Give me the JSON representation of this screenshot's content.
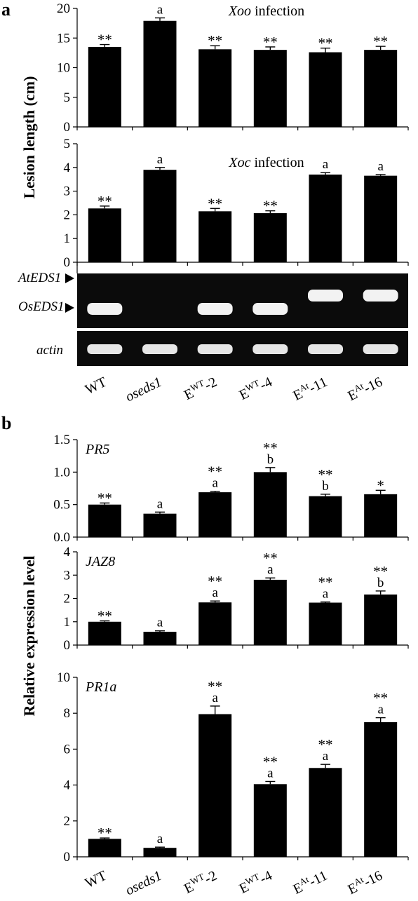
{
  "panel_labels": {
    "a": "a",
    "b": "b"
  },
  "categories": [
    {
      "main": "WT",
      "sup": "",
      "tail": "",
      "italic": false
    },
    {
      "main": "oseds1",
      "sup": "",
      "tail": "",
      "italic": true
    },
    {
      "main": "E",
      "sup": "WT",
      "tail": "-2",
      "italic": false
    },
    {
      "main": "E",
      "sup": "WT",
      "tail": "-4",
      "italic": false
    },
    {
      "main": "E",
      "sup": "At",
      "tail": "-11",
      "italic": false
    },
    {
      "main": "E",
      "sup": "At",
      "tail": "-16",
      "italic": false
    }
  ],
  "panel_a": {
    "ylabel": "Lesion length (cm)",
    "gel": {
      "lane_labels": {
        "top": "AtEDS1",
        "bottom": "OsEDS1"
      },
      "actin_label": "actin",
      "top_band_present": [
        false,
        false,
        false,
        false,
        true,
        true
      ],
      "bottom_band_present": [
        true,
        false,
        true,
        true,
        false,
        false
      ],
      "actin_present": [
        true,
        true,
        true,
        true,
        true,
        true
      ]
    }
  },
  "panel_b": {
    "ylabel": "Relative expression level"
  },
  "chart_data": [
    {
      "type": "bar",
      "id": "xoo",
      "title_italic": "Xoo",
      "title_rest": " infection",
      "categories": [
        "WT",
        "oseds1",
        "EWT-2",
        "EWT-4",
        "EAt-11",
        "EAt-16"
      ],
      "values": [
        13.5,
        17.9,
        13.1,
        13.0,
        12.6,
        13.0
      ],
      "errors": [
        0.4,
        0.5,
        0.6,
        0.5,
        0.7,
        0.6
      ],
      "annotations": [
        [
          "**"
        ],
        [
          "a"
        ],
        [
          "**"
        ],
        [
          "**"
        ],
        [
          "**"
        ],
        [
          "**"
        ]
      ],
      "ylim": [
        0,
        20
      ],
      "yticks": [
        0,
        5,
        10,
        15,
        20
      ],
      "tick_labels": [
        "0",
        "5",
        "10",
        "15",
        "20"
      ]
    },
    {
      "type": "bar",
      "id": "xoc",
      "title_italic": "Xoc",
      "title_rest": " infection",
      "categories": [
        "WT",
        "oseds1",
        "EWT-2",
        "EWT-4",
        "EAt-11",
        "EAt-16"
      ],
      "values": [
        2.27,
        3.9,
        2.15,
        2.07,
        3.7,
        3.65
      ],
      "errors": [
        0.1,
        0.1,
        0.12,
        0.1,
        0.08,
        0.05
      ],
      "annotations": [
        [
          "**"
        ],
        [
          "a"
        ],
        [
          "**"
        ],
        [
          "**"
        ],
        [
          "a"
        ],
        [
          "a"
        ]
      ],
      "ylim": [
        0,
        5
      ],
      "yticks": [
        0,
        1,
        2,
        3,
        4,
        5
      ],
      "tick_labels": [
        "0",
        "1",
        "2",
        "3",
        "4",
        "5"
      ]
    },
    {
      "type": "bar",
      "id": "pr5",
      "title_italic": "PR5",
      "title_rest": "",
      "categories": [
        "WT",
        "oseds1",
        "EWT-2",
        "EWT-4",
        "EAt-11",
        "EAt-16"
      ],
      "values": [
        0.5,
        0.36,
        0.69,
        1.0,
        0.63,
        0.66
      ],
      "errors": [
        0.025,
        0.025,
        0.015,
        0.07,
        0.03,
        0.06
      ],
      "annotations": [
        [
          "**"
        ],
        [
          "a"
        ],
        [
          "**",
          "a"
        ],
        [
          "**",
          "b"
        ],
        [
          "**",
          "b"
        ],
        [
          "*"
        ]
      ],
      "ylim": [
        0,
        1.5
      ],
      "yticks": [
        0,
        0.5,
        1.0,
        1.5
      ],
      "tick_labels": [
        "0.0",
        "0.5",
        "1.0",
        "1.5"
      ]
    },
    {
      "type": "bar",
      "id": "jaz8",
      "title_italic": "JAZ8",
      "title_rest": "",
      "categories": [
        "WT",
        "oseds1",
        "EWT-2",
        "EWT-4",
        "EAt-11",
        "EAt-16"
      ],
      "values": [
        1.0,
        0.57,
        1.83,
        2.8,
        1.82,
        2.17
      ],
      "errors": [
        0.04,
        0.04,
        0.06,
        0.08,
        0.03,
        0.15
      ],
      "annotations": [
        [
          "**"
        ],
        [
          "a"
        ],
        [
          "**",
          "a"
        ],
        [
          "**",
          "a"
        ],
        [
          "**",
          "a"
        ],
        [
          "**",
          "b"
        ]
      ],
      "ylim": [
        0,
        4
      ],
      "yticks": [
        0,
        1,
        2,
        3,
        4
      ],
      "tick_labels": [
        "0",
        "1",
        "2",
        "3",
        "4"
      ]
    },
    {
      "type": "bar",
      "id": "pr1a",
      "title_italic": "PR1a",
      "title_rest": "",
      "categories": [
        "WT",
        "oseds1",
        "EWT-2",
        "EWT-4",
        "EAt-11",
        "EAt-16"
      ],
      "values": [
        1.0,
        0.5,
        7.95,
        4.05,
        4.95,
        7.5
      ],
      "errors": [
        0.05,
        0.04,
        0.45,
        0.15,
        0.2,
        0.25
      ],
      "annotations": [
        [
          "**"
        ],
        [
          "a"
        ],
        [
          "**",
          "a"
        ],
        [
          "**",
          "a"
        ],
        [
          "**",
          "a"
        ],
        [
          "**",
          "a"
        ]
      ],
      "ylim": [
        0,
        10
      ],
      "yticks": [
        0,
        2,
        4,
        6,
        8,
        10
      ],
      "tick_labels": [
        "0",
        "2",
        "4",
        "6",
        "8",
        "10"
      ]
    }
  ]
}
